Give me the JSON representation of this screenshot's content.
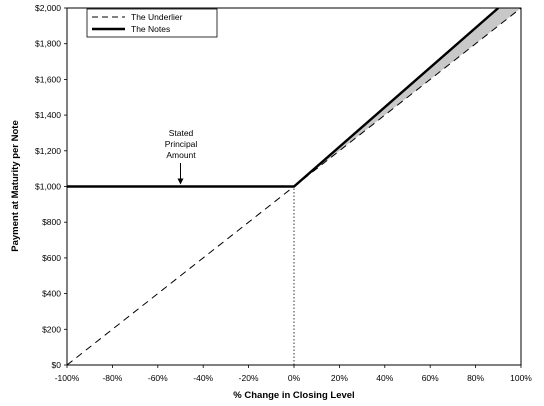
{
  "chart_data": {
    "type": "line",
    "xlabel": "% Change in Closing Level",
    "ylabel": "Payment at Maturity per Note",
    "xlim": [
      -100,
      100
    ],
    "ylim": [
      0,
      2000
    ],
    "x_ticks": [
      -100,
      -80,
      -60,
      -40,
      -20,
      0,
      20,
      40,
      60,
      80,
      100
    ],
    "x_tick_labels": [
      "-100%",
      "-80%",
      "-60%",
      "-40%",
      "-20%",
      "0%",
      "20%",
      "40%",
      "60%",
      "80%",
      "100%"
    ],
    "y_ticks": [
      0,
      200,
      400,
      600,
      800,
      1000,
      1200,
      1400,
      1600,
      1800,
      2000
    ],
    "y_tick_labels": [
      "$0",
      "$200",
      "$400",
      "$600",
      "$800",
      "$1,000",
      "$1,200",
      "$1,400",
      "$1,600",
      "$1,800",
      "$2,000"
    ],
    "grid": false,
    "legend_position": "top-left",
    "series": [
      {
        "name": "The Underlier",
        "style": "dashed",
        "color": "#000000",
        "x": [
          -100,
          0,
          100
        ],
        "y": [
          0,
          1000,
          2000
        ]
      },
      {
        "name": "The Notes",
        "style": "solid-thick",
        "color": "#000000",
        "x": [
          -100,
          0,
          90
        ],
        "y": [
          1000,
          1000,
          2000
        ]
      }
    ],
    "shaded_region": {
      "between": [
        "The Notes",
        "The Underlier"
      ],
      "x_from": 0,
      "color": "#c8c8c8"
    },
    "reference_line": {
      "x": 0,
      "y_from": 0,
      "y_to": 1000,
      "style": "dotted"
    },
    "annotation": {
      "lines": [
        "Stated",
        "Principal",
        "Amount"
      ],
      "arrow_to": {
        "x": -50,
        "y": 1000
      }
    }
  }
}
